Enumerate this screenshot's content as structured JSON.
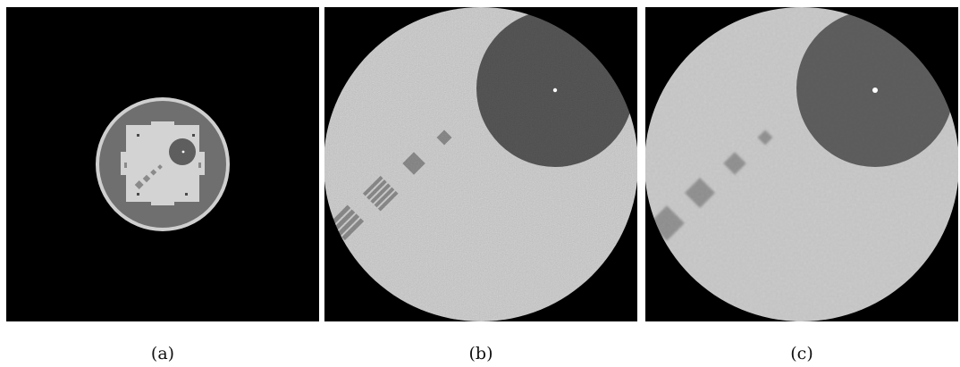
{
  "figure": {
    "panels": [
      {
        "id": "a",
        "caption": "(a)"
      },
      {
        "id": "b",
        "caption": "(b)"
      },
      {
        "id": "c",
        "caption": "(c)"
      }
    ]
  },
  "colors": {
    "background": "#000000",
    "phantom_ring": "#d0d0d0",
    "phantom_body": "#6f6f6f",
    "phantom_insert": "#d2d2d2",
    "disk_fill": "#5e5e5e",
    "noise_field_b": "#cfcfcf",
    "noise_field_c": "#cdcdcd",
    "dark_disk_b": "#555555",
    "dark_disk_c": "#5f5f5f",
    "hot_spot": "#ffffff"
  }
}
